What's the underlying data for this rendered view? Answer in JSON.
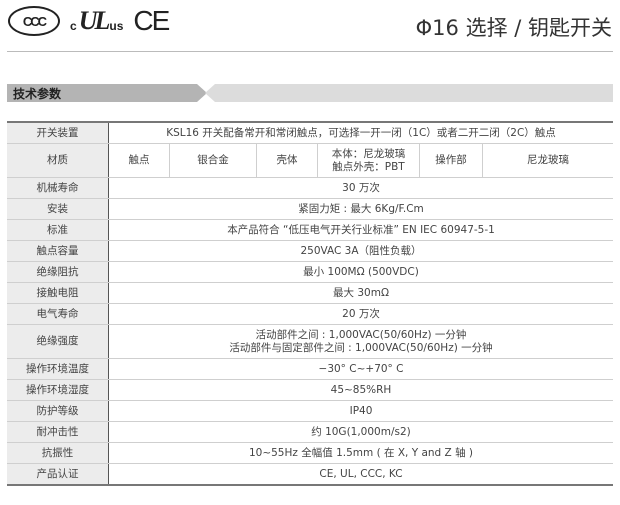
{
  "header": {
    "logos": {
      "ccc": "CCC",
      "ul_c": "c",
      "ul": "UL",
      "ul_us": "us",
      "ce": "CE"
    },
    "title": "Φ16 选择 / 钥匙开关"
  },
  "section": {
    "title": "技术参数"
  },
  "specs": {
    "r0": {
      "k": "开关装置",
      "v": "KSL16 开关配备常开和常闭触点，可选择一开一闭（1C）或者二开二闭（2C）触点"
    },
    "material": {
      "k": "材质",
      "c1": "触点",
      "c2": "银合金",
      "c3": "壳体",
      "c4a": "本体：尼龙玻璃",
      "c4b": "触点外壳：PBT",
      "c5": "操作部",
      "c6": "尼龙玻璃"
    },
    "r2": {
      "k": "机械寿命",
      "v": "30 万次"
    },
    "r3": {
      "k": "安装",
      "v": "紧固力矩 : 最大 6Kg/F.Cm"
    },
    "r4": {
      "k": "标准",
      "v": "本产品符合 “低压电气开关行业标准” EN IEC 60947-5-1"
    },
    "r5": {
      "k": "触点容量",
      "v": "250VAC 3A（阻性负载）"
    },
    "r6": {
      "k": "绝缘阻抗",
      "v": "最小 100MΩ (500VDC)"
    },
    "r7": {
      "k": "接触电阻",
      "v": "最大 30mΩ"
    },
    "r8": {
      "k": "电气寿命",
      "v": "20 万次"
    },
    "r9": {
      "k": "绝缘强度",
      "v1": "活动部件之间 : 1,000VAC(50/60Hz) 一分钟",
      "v2": "活动部件与固定部件之间 : 1,000VAC(50/60Hz) 一分钟"
    },
    "r10": {
      "k": "操作环境温度",
      "v": "−30° C~+70° C"
    },
    "r11": {
      "k": "操作环境湿度",
      "v": "45~85%RH"
    },
    "r12": {
      "k": "防护等级",
      "v": "IP40"
    },
    "r13": {
      "k": "耐冲击性",
      "v": "约 10G(1,000m/s2)"
    },
    "r14": {
      "k": "抗振性",
      "v": "10~55Hz 全幅值 1.5mm ( 在 X, Y and Z 轴 )"
    },
    "r15": {
      "k": "产品认证",
      "v": "CE, UL, CCC, KC"
    }
  }
}
